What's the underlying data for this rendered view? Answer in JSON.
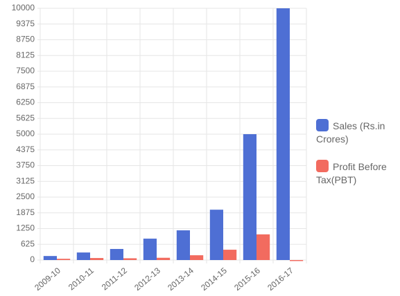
{
  "chart_data": {
    "type": "bar",
    "categories": [
      "2009-10",
      "2010-11",
      "2011-12",
      "2012-13",
      "2013-14",
      "2014-15",
      "2015-16",
      "2016-17"
    ],
    "series": [
      {
        "name": "Sales (Rs.in Crores)",
        "color": "#4e6fd4",
        "values": [
          160,
          300,
          440,
          850,
          1180,
          2000,
          5000,
          10000
        ]
      },
      {
        "name": "Profit Before Tax(PBT)",
        "color": "#f26b5f",
        "values": [
          50,
          80,
          70,
          90,
          190,
          410,
          1020,
          -40
        ]
      }
    ],
    "ylim": [
      0,
      10000
    ],
    "yticks": [
      0,
      625,
      1250,
      1875,
      2500,
      3125,
      3750,
      4375,
      5000,
      5625,
      6250,
      6875,
      7500,
      8125,
      8750,
      9375,
      10000
    ],
    "grid": true,
    "legend": "right"
  }
}
